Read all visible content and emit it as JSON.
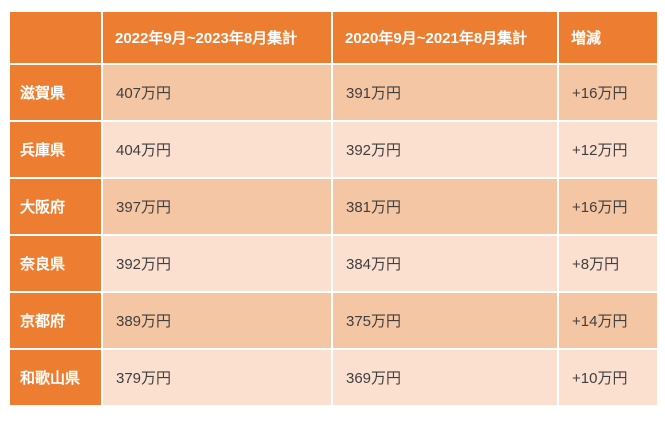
{
  "table": {
    "title": "prefecture-average-salary-comparison",
    "header": {
      "corner": "",
      "period_current": "2022年9月~2023年8月集計",
      "period_previous": "2020年9月~2021年8月集計",
      "diff": "増減"
    },
    "rows": [
      {
        "prefecture": "滋賀県",
        "current": "407万円",
        "previous": "391万円",
        "diff": "+16万円"
      },
      {
        "prefecture": "兵庫県",
        "current": "404万円",
        "previous": "392万円",
        "diff": "+12万円"
      },
      {
        "prefecture": "大阪府",
        "current": "397万円",
        "previous": "381万円",
        "diff": "+16万円"
      },
      {
        "prefecture": "奈良県",
        "current": "392万円",
        "previous": "384万円",
        "diff": "+8万円"
      },
      {
        "prefecture": "京都府",
        "current": "389万円",
        "previous": "375万円",
        "diff": "+14万円"
      },
      {
        "prefecture": "和歌山県",
        "current": "379万円",
        "previous": "369万円",
        "diff": "+10万円"
      }
    ],
    "colors": {
      "accent_orange": "#ed7d31",
      "band_dark": "#f5c6a3",
      "band_light": "#fbe0d0",
      "header_text": "#ffffff",
      "cell_text": "#3f3f3f",
      "gridline": "#ffffff"
    }
  }
}
